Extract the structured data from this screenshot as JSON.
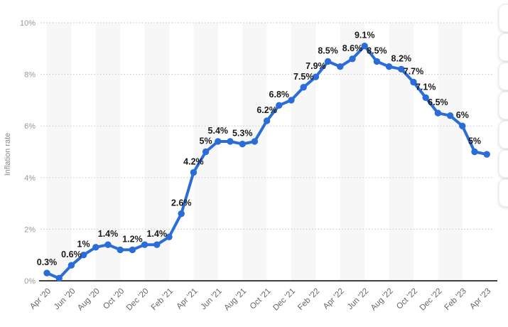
{
  "chart_data": {
    "type": "line",
    "ylabel": "Inflation rate",
    "x": [
      "Apr '20",
      "May '20",
      "Jun '20",
      "Jul '20",
      "Aug '20",
      "Sep '20",
      "Oct '20",
      "Nov '20",
      "Dec '20",
      "Jan '21",
      "Feb '21",
      "Mar '21",
      "Apr '21",
      "May '21",
      "Jun '21",
      "Jul '21",
      "Aug '21",
      "Sep '21",
      "Oct '21",
      "Nov '21",
      "Dec '21",
      "Jan '22",
      "Feb '22",
      "Mar '22",
      "Apr '22",
      "May '22",
      "Jun '22",
      "Jul '22",
      "Aug '22",
      "Sep '22",
      "Oct '22",
      "Nov '22",
      "Dec '22",
      "Jan '23",
      "Feb '23",
      "Mar '23",
      "Apr '23"
    ],
    "values": [
      0.3,
      0.1,
      0.6,
      1.0,
      1.3,
      1.4,
      1.2,
      1.2,
      1.4,
      1.4,
      1.7,
      2.6,
      4.2,
      5.0,
      5.4,
      5.4,
      5.3,
      5.4,
      6.2,
      6.8,
      7.0,
      7.5,
      7.9,
      8.5,
      8.3,
      8.6,
      9.1,
      8.5,
      8.3,
      8.2,
      7.7,
      7.1,
      6.5,
      6.4,
      6.0,
      5.0,
      4.9
    ],
    "point_labels": [
      "0.3%",
      null,
      "0.6%",
      "1%",
      null,
      "1.4%",
      null,
      "1.2%",
      null,
      "1.4%",
      null,
      "2.6%",
      "4.2%",
      "5%",
      "5.4%",
      null,
      "5.3%",
      null,
      "6.2%",
      "6.8%",
      null,
      "7.5%",
      "7.9%",
      "8.5%",
      null,
      "8.6%",
      "9.1%",
      "8.5%",
      null,
      "8.2%",
      "7.7%",
      "7.1%",
      "6.5%",
      null,
      "6%",
      "5%",
      null
    ],
    "x_tick_labels": [
      "Apr '20",
      "Jun '20",
      "Aug '20",
      "Oct '20",
      "Dec '20",
      "Feb '21",
      "Apr '21",
      "Jun '21",
      "Aug '21",
      "Oct '21",
      "Dec '21",
      "Feb '22",
      "Apr '22",
      "Jun '22",
      "Aug '22",
      "Oct '22",
      "Dec '22",
      "Feb '23",
      "Apr '23"
    ],
    "x_tick_every": 2,
    "y_tick_labels": [
      "0%",
      "2%",
      "4%",
      "6%",
      "8%",
      "10%"
    ],
    "ylim": [
      0,
      10
    ],
    "grid": "dotted-horizontal",
    "legend": "none",
    "colors": {
      "line": "#2b6dd8",
      "band": "#f7f7f7",
      "grid": "#c9c9c9",
      "axis": "#000000",
      "y_tick_text": "#999999",
      "x_tick_text": "#666666",
      "point_label_text": "#1a1a1a",
      "axis_title_text": "#8a8a8a"
    }
  },
  "floating_toolbar": {
    "visible_button_count": 7
  }
}
